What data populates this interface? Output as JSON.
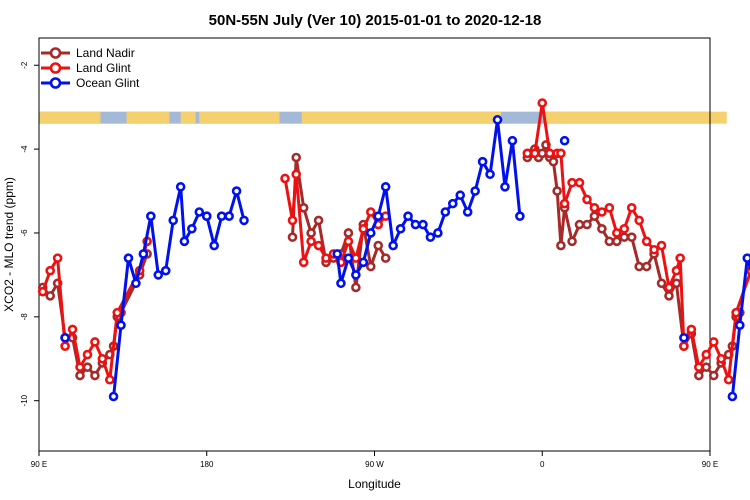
{
  "chart_data": {
    "type": "line",
    "title": "50N-55N July (Ver 10)   2015-01-01 to 2020-12-18",
    "xlabel": "Longitude",
    "ylabel": "XCO2 - MLO trend (ppm)",
    "xlim": [
      90,
      450
    ],
    "ylim": [
      -11.2,
      -1.35
    ],
    "x_ticks": [
      {
        "value": 90,
        "label": "90 E"
      },
      {
        "value": 180,
        "label": "180"
      },
      {
        "value": 270,
        "label": "90 W"
      },
      {
        "value": 360,
        "label": "0"
      },
      {
        "value": 450,
        "label": "90 E"
      },
      {
        "value": 540,
        "label": "180"
      }
    ],
    "y_ticks": [
      {
        "value": -2,
        "label": "-2"
      },
      {
        "value": -4,
        "label": "-4"
      },
      {
        "value": -6,
        "label": "-6"
      },
      {
        "value": -8,
        "label": "-8"
      },
      {
        "value": -10,
        "label": "-10"
      }
    ],
    "legend_position": "top-left",
    "land_mask_band": {
      "y_center": -3.25,
      "land_color": "#f5d06f",
      "ocean_color": "#a4b9d8"
    },
    "series": [
      {
        "name": "Land Nadir",
        "color": "#a52a2a",
        "points": [
          [
            92,
            -7.3
          ],
          [
            96,
            -7.5
          ],
          [
            100,
            -7.2
          ],
          [
            104,
            -8.5
          ],
          [
            108,
            -8.5
          ],
          [
            112,
            -9.4
          ],
          [
            116,
            -9.2
          ],
          [
            120,
            -9.4
          ],
          [
            124,
            -9.1
          ],
          [
            128,
            -8.9
          ],
          [
            130,
            -8.7
          ],
          [
            132,
            -8.0
          ],
          [
            134,
            -7.9
          ],
          [
            144,
            -7.0
          ],
          [
            148,
            -6.5
          ],
          [
            226,
            -6.1
          ],
          [
            228,
            -4.2
          ],
          [
            232,
            -5.4
          ],
          [
            236,
            -6.0
          ],
          [
            240,
            -5.7
          ],
          [
            244,
            -6.7
          ],
          [
            248,
            -6.6
          ],
          [
            252,
            -6.5
          ],
          [
            256,
            -6.0
          ],
          [
            260,
            -7.3
          ],
          [
            264,
            -5.8
          ],
          [
            268,
            -6.8
          ],
          [
            272,
            -6.3
          ],
          [
            276,
            -6.6
          ],
          [
            352,
            -4.2
          ],
          [
            354,
            -4.1
          ],
          [
            356,
            -4.0
          ],
          [
            358,
            -4.2
          ],
          [
            360,
            -4.1
          ],
          [
            362,
            -3.9
          ],
          [
            364,
            -4.2
          ],
          [
            366,
            -4.3
          ],
          [
            368,
            -5.0
          ],
          [
            370,
            -6.3
          ],
          [
            372,
            -5.4
          ],
          [
            376,
            -6.2
          ],
          [
            380,
            -5.8
          ],
          [
            384,
            -5.8
          ],
          [
            388,
            -5.6
          ],
          [
            392,
            -5.9
          ],
          [
            396,
            -6.2
          ],
          [
            400,
            -6.2
          ],
          [
            404,
            -6.1
          ],
          [
            408,
            -6.1
          ],
          [
            412,
            -6.8
          ],
          [
            416,
            -6.8
          ],
          [
            420,
            -6.5
          ],
          [
            424,
            -7.2
          ],
          [
            428,
            -7.5
          ],
          [
            432,
            -7.2
          ],
          [
            436,
            -8.7
          ],
          [
            440,
            -8.4
          ],
          [
            444,
            -9.4
          ],
          [
            448,
            -9.2
          ],
          [
            452,
            -9.4
          ],
          [
            456,
            -9.1
          ],
          [
            460,
            -8.9
          ],
          [
            462,
            -8.7
          ],
          [
            464,
            -8.0
          ],
          [
            466,
            -7.9
          ]
        ]
      },
      {
        "name": "Land Glint",
        "color": "#ee1111",
        "points": [
          [
            92,
            -7.4
          ],
          [
            96,
            -6.9
          ],
          [
            100,
            -6.6
          ],
          [
            104,
            -8.7
          ],
          [
            108,
            -8.3
          ],
          [
            112,
            -9.2
          ],
          [
            116,
            -8.9
          ],
          [
            120,
            -8.6
          ],
          [
            124,
            -9.0
          ],
          [
            128,
            -9.5
          ],
          [
            132,
            -7.9
          ],
          [
            144,
            -6.9
          ],
          [
            148,
            -6.2
          ],
          [
            180,
            -5.6
          ],
          [
            222,
            -4.7
          ],
          [
            226,
            -5.7
          ],
          [
            228,
            -4.6
          ],
          [
            232,
            -6.7
          ],
          [
            236,
            -6.2
          ],
          [
            240,
            -6.3
          ],
          [
            244,
            -6.6
          ],
          [
            248,
            -6.5
          ],
          [
            252,
            -6.7
          ],
          [
            256,
            -6.2
          ],
          [
            260,
            -6.6
          ],
          [
            264,
            -5.9
          ],
          [
            268,
            -5.5
          ],
          [
            272,
            -5.8
          ],
          [
            276,
            -5.6
          ],
          [
            352,
            -4.1
          ],
          [
            356,
            -4.1
          ],
          [
            360,
            -2.9
          ],
          [
            364,
            -4.1
          ],
          [
            368,
            -4.1
          ],
          [
            370,
            -4.1
          ],
          [
            372,
            -5.3
          ],
          [
            376,
            -4.8
          ],
          [
            380,
            -4.8
          ],
          [
            384,
            -5.2
          ],
          [
            388,
            -5.4
          ],
          [
            392,
            -5.5
          ],
          [
            396,
            -5.4
          ],
          [
            400,
            -6.0
          ],
          [
            404,
            -5.9
          ],
          [
            408,
            -5.4
          ],
          [
            412,
            -5.7
          ],
          [
            416,
            -6.2
          ],
          [
            420,
            -6.4
          ],
          [
            424,
            -6.3
          ],
          [
            428,
            -7.3
          ],
          [
            432,
            -6.9
          ],
          [
            434,
            -6.6
          ],
          [
            436,
            -8.7
          ],
          [
            440,
            -8.3
          ],
          [
            444,
            -9.2
          ],
          [
            448,
            -8.9
          ],
          [
            452,
            -8.6
          ],
          [
            456,
            -9.0
          ],
          [
            460,
            -9.5
          ],
          [
            464,
            -7.9
          ],
          [
            472,
            -6.9
          ],
          [
            474,
            -6.2
          ]
        ]
      },
      {
        "name": "Ocean Glint",
        "color": "#0011ee",
        "points": [
          [
            104,
            -8.5
          ],
          [
            130,
            -9.9
          ],
          [
            134,
            -8.2
          ],
          [
            138,
            -6.6
          ],
          [
            142,
            -7.2
          ],
          [
            146,
            -6.5
          ],
          [
            150,
            -5.6
          ],
          [
            154,
            -7.0
          ],
          [
            158,
            -6.9
          ],
          [
            162,
            -5.7
          ],
          [
            166,
            -4.9
          ],
          [
            168,
            -6.2
          ],
          [
            172,
            -5.9
          ],
          [
            176,
            -5.5
          ],
          [
            180,
            -5.6
          ],
          [
            184,
            -6.3
          ],
          [
            188,
            -5.6
          ],
          [
            192,
            -5.6
          ],
          [
            196,
            -5.0
          ],
          [
            200,
            -5.7
          ],
          [
            250,
            -6.5
          ],
          [
            252,
            -7.2
          ],
          [
            256,
            -6.6
          ],
          [
            260,
            -7.0
          ],
          [
            264,
            -6.7
          ],
          [
            268,
            -6.0
          ],
          [
            272,
            -5.6
          ],
          [
            276,
            -4.9
          ],
          [
            280,
            -6.3
          ],
          [
            284,
            -5.9
          ],
          [
            288,
            -5.6
          ],
          [
            292,
            -5.8
          ],
          [
            296,
            -5.8
          ],
          [
            300,
            -6.1
          ],
          [
            304,
            -6.0
          ],
          [
            308,
            -5.5
          ],
          [
            312,
            -5.3
          ],
          [
            316,
            -5.1
          ],
          [
            320,
            -5.5
          ],
          [
            324,
            -5.0
          ],
          [
            328,
            -4.3
          ],
          [
            332,
            -4.6
          ],
          [
            336,
            -3.3
          ],
          [
            340,
            -4.9
          ],
          [
            344,
            -3.8
          ],
          [
            348,
            -5.6
          ],
          [
            372,
            -3.8
          ],
          [
            436,
            -8.5
          ],
          [
            462,
            -9.9
          ],
          [
            466,
            -8.2
          ],
          [
            470,
            -6.6
          ],
          [
            474,
            -7.2
          ],
          [
            478,
            -6.5
          ],
          [
            482,
            -5.6
          ],
          [
            486,
            -7.0
          ],
          [
            490,
            -6.9
          ],
          [
            494,
            -5.7
          ]
        ]
      }
    ]
  }
}
